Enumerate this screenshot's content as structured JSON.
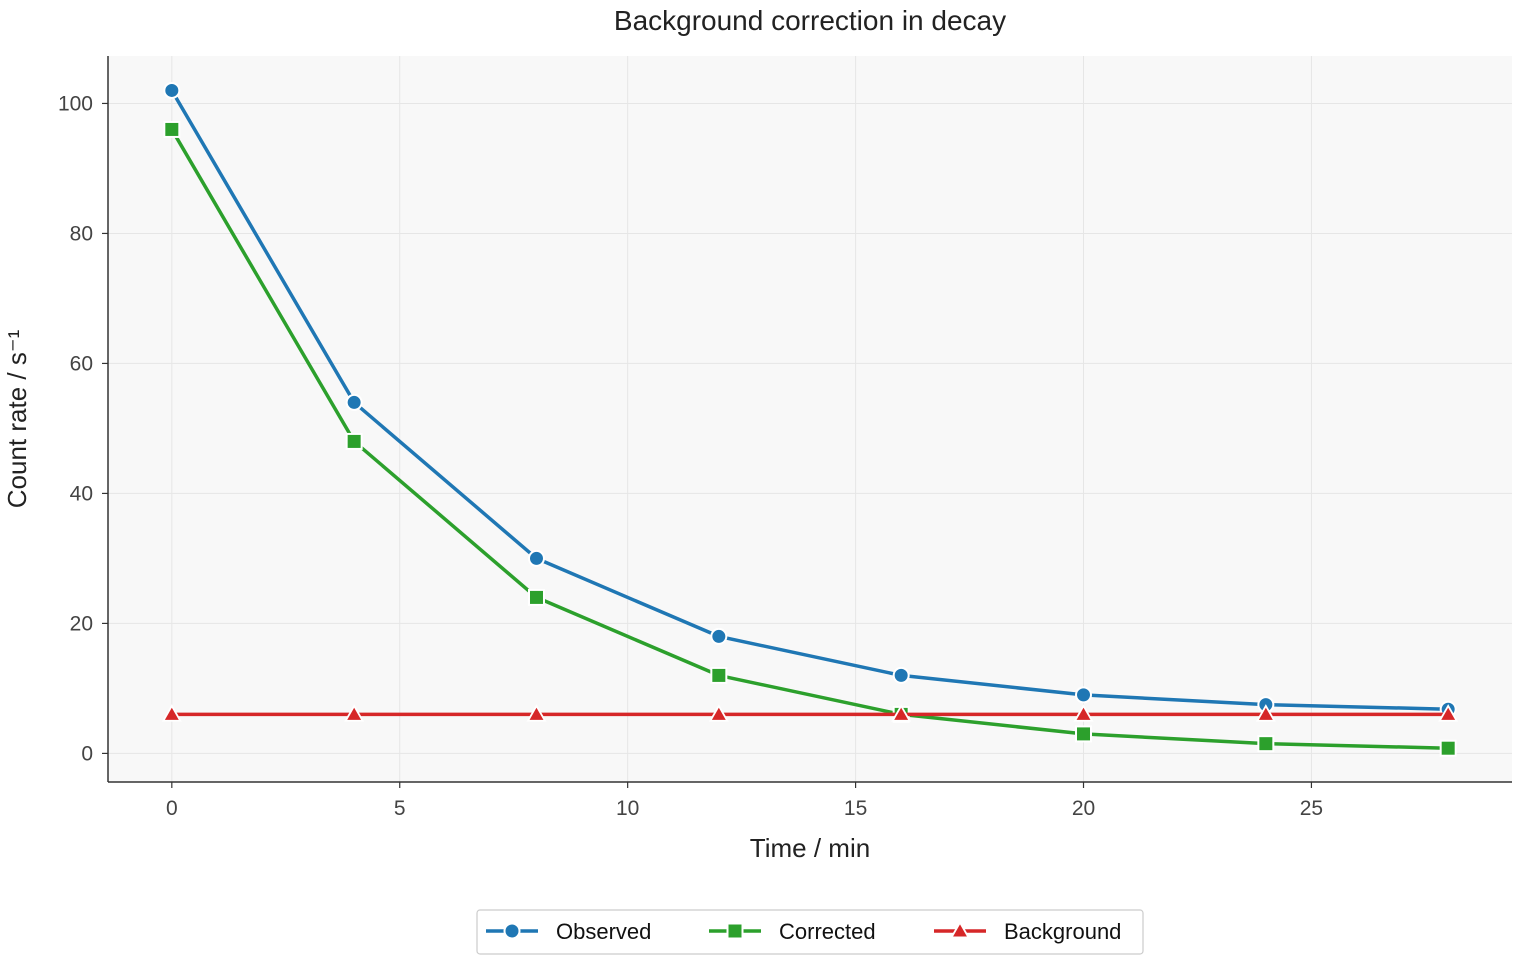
{
  "chart_data": {
    "type": "line",
    "title": "Background correction in decay",
    "xlabel": "Time / min",
    "ylabel": "Count rate / s⁻¹",
    "x": [
      0,
      4,
      8,
      12,
      16,
      20,
      24,
      28
    ],
    "xlim": [
      -1.4,
      29.4
    ],
    "ylim": [
      -4.4,
      107.3
    ],
    "xticks": [
      0,
      5,
      10,
      15,
      20,
      25
    ],
    "yticks": [
      0,
      20,
      40,
      60,
      80,
      100
    ],
    "grid": true,
    "legend_position": "bottom-center",
    "series": [
      {
        "name": "Observed",
        "marker": "circle",
        "color": "#1f77b4",
        "values": [
          102,
          54,
          30,
          18,
          12,
          9,
          7.5,
          6.8
        ]
      },
      {
        "name": "Corrected",
        "marker": "square",
        "color": "#2ca02c",
        "values": [
          96,
          48,
          24,
          12,
          6,
          3,
          1.5,
          0.8
        ]
      },
      {
        "name": "Background",
        "marker": "triangle",
        "color": "#d62728",
        "values": [
          6,
          6,
          6,
          6,
          6,
          6,
          6,
          6
        ]
      }
    ]
  }
}
